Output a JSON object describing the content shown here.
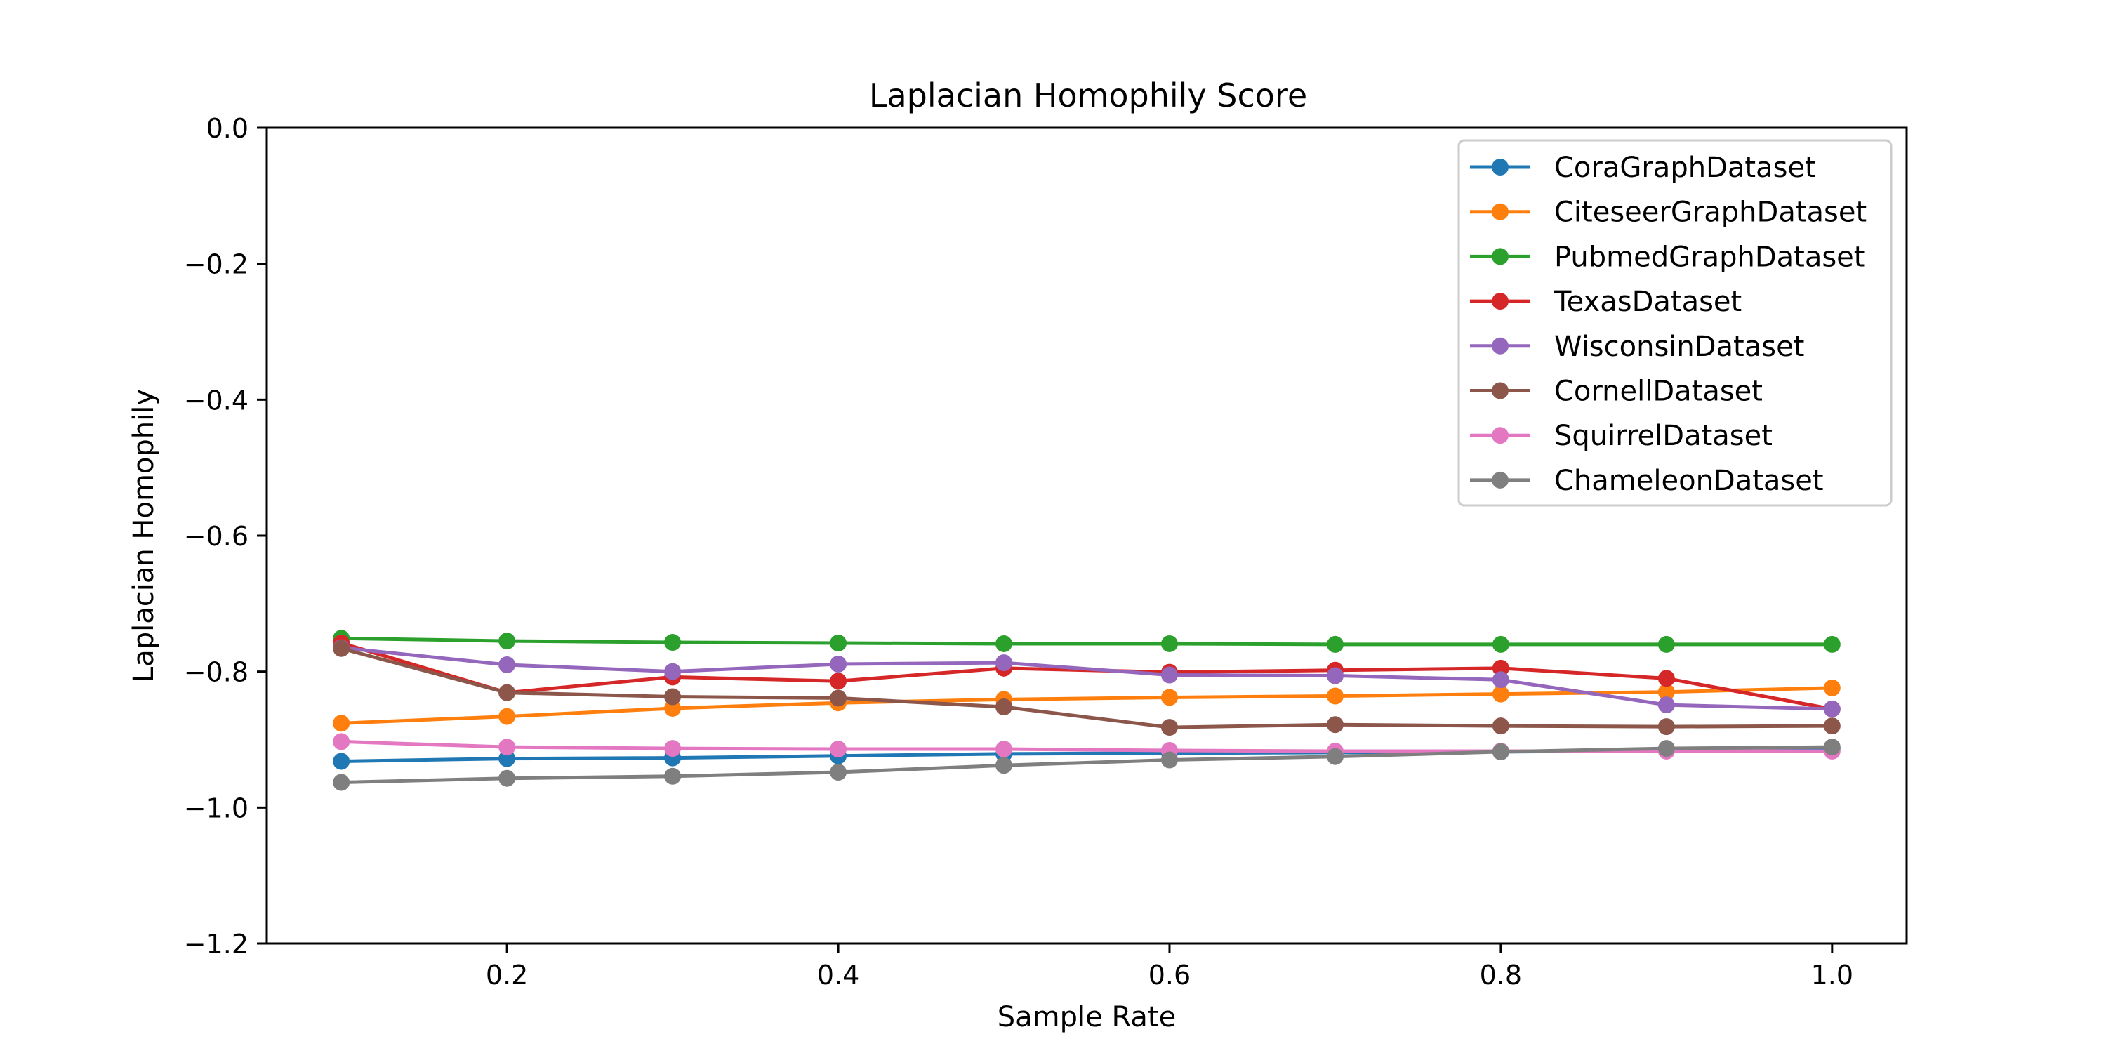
{
  "chart_data": {
    "type": "line",
    "title": "Laplacian Homophily Score",
    "xlabel": "Sample Rate",
    "ylabel": "Laplacian Homophily",
    "xlim": [
      0.055,
      1.045
    ],
    "ylim": [
      -1.2,
      0.0
    ],
    "x_ticks": [
      0.2,
      0.4,
      0.6,
      0.8,
      1.0
    ],
    "x_tick_labels": [
      "0.2",
      "0.4",
      "0.6",
      "0.8",
      "1.0"
    ],
    "y_ticks": [
      0.0,
      -0.2,
      -0.4,
      -0.6,
      -0.8,
      -1.0,
      -1.2
    ],
    "y_tick_labels": [
      "0.0",
      "−0.2",
      "−0.4",
      "−0.6",
      "−0.8",
      "−1.0",
      "−1.2"
    ],
    "grid": false,
    "legend_position": "top-right",
    "x": [
      0.1,
      0.2,
      0.3,
      0.4,
      0.5,
      0.6,
      0.7,
      0.8,
      0.9,
      1.0
    ],
    "series": [
      {
        "name": "CoraGraphDataset",
        "color": "#1f77b4",
        "values": [
          -0.932,
          -0.928,
          -0.927,
          -0.924,
          -0.921,
          -0.92,
          -0.919,
          -0.918,
          -0.916,
          -0.914
        ]
      },
      {
        "name": "CiteseerGraphDataset",
        "color": "#ff7f0e",
        "values": [
          -0.876,
          -0.866,
          -0.854,
          -0.846,
          -0.841,
          -0.838,
          -0.836,
          -0.833,
          -0.83,
          -0.824
        ]
      },
      {
        "name": "PubmedGraphDataset",
        "color": "#2ca02c",
        "values": [
          -0.751,
          -0.755,
          -0.757,
          -0.758,
          -0.759,
          -0.759,
          -0.76,
          -0.76,
          -0.76,
          -0.76
        ]
      },
      {
        "name": "TexasDataset",
        "color": "#d62728",
        "values": [
          -0.758,
          -0.831,
          -0.808,
          -0.814,
          -0.795,
          -0.801,
          -0.798,
          -0.795,
          -0.81,
          -0.855
        ]
      },
      {
        "name": "WisconsinDataset",
        "color": "#9467bd",
        "values": [
          -0.765,
          -0.79,
          -0.8,
          -0.789,
          -0.787,
          -0.805,
          -0.806,
          -0.812,
          -0.849,
          -0.855
        ]
      },
      {
        "name": "CornellDataset",
        "color": "#8c564b",
        "values": [
          -0.766,
          -0.831,
          -0.837,
          -0.839,
          -0.852,
          -0.882,
          -0.878,
          -0.88,
          -0.881,
          -0.88
        ]
      },
      {
        "name": "SquirrelDataset",
        "color": "#e377c2",
        "values": [
          -0.903,
          -0.911,
          -0.913,
          -0.914,
          -0.914,
          -0.916,
          -0.917,
          -0.917,
          -0.917,
          -0.917
        ]
      },
      {
        "name": "ChameleonDataset",
        "color": "#7f7f7f",
        "values": [
          -0.963,
          -0.957,
          -0.954,
          -0.948,
          -0.938,
          -0.93,
          -0.925,
          -0.918,
          -0.913,
          -0.911
        ]
      }
    ]
  }
}
